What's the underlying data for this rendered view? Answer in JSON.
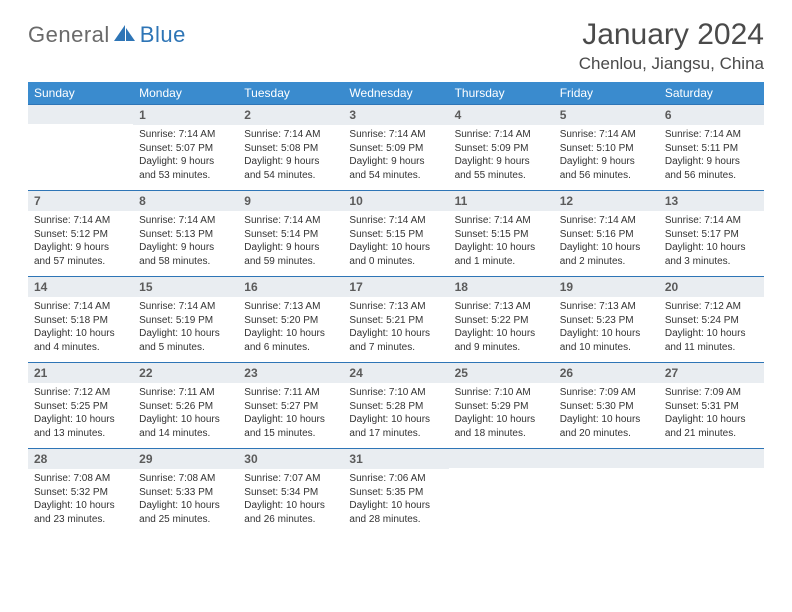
{
  "brand": {
    "part1": "General",
    "part2": "Blue"
  },
  "title": "January 2024",
  "location": "Chenlou, Jiangsu, China",
  "theme": {
    "header_bg": "#3a8bce",
    "header_text": "#ffffff",
    "daynum_bg": "#e9edf1",
    "daynum_text": "#5b5b5b",
    "rule_color": "#2e75b6",
    "body_text": "#333333",
    "logo_gray": "#6a6a6a",
    "logo_blue": "#2e75b6"
  },
  "weekdays": [
    "Sunday",
    "Monday",
    "Tuesday",
    "Wednesday",
    "Thursday",
    "Friday",
    "Saturday"
  ],
  "first_weekday_index": 1,
  "days": [
    {
      "n": 1,
      "sunrise": "7:14 AM",
      "sunset": "5:07 PM",
      "daylight": "9 hours and 53 minutes."
    },
    {
      "n": 2,
      "sunrise": "7:14 AM",
      "sunset": "5:08 PM",
      "daylight": "9 hours and 54 minutes."
    },
    {
      "n": 3,
      "sunrise": "7:14 AM",
      "sunset": "5:09 PM",
      "daylight": "9 hours and 54 minutes."
    },
    {
      "n": 4,
      "sunrise": "7:14 AM",
      "sunset": "5:09 PM",
      "daylight": "9 hours and 55 minutes."
    },
    {
      "n": 5,
      "sunrise": "7:14 AM",
      "sunset": "5:10 PM",
      "daylight": "9 hours and 56 minutes."
    },
    {
      "n": 6,
      "sunrise": "7:14 AM",
      "sunset": "5:11 PM",
      "daylight": "9 hours and 56 minutes."
    },
    {
      "n": 7,
      "sunrise": "7:14 AM",
      "sunset": "5:12 PM",
      "daylight": "9 hours and 57 minutes."
    },
    {
      "n": 8,
      "sunrise": "7:14 AM",
      "sunset": "5:13 PM",
      "daylight": "9 hours and 58 minutes."
    },
    {
      "n": 9,
      "sunrise": "7:14 AM",
      "sunset": "5:14 PM",
      "daylight": "9 hours and 59 minutes."
    },
    {
      "n": 10,
      "sunrise": "7:14 AM",
      "sunset": "5:15 PM",
      "daylight": "10 hours and 0 minutes."
    },
    {
      "n": 11,
      "sunrise": "7:14 AM",
      "sunset": "5:15 PM",
      "daylight": "10 hours and 1 minute."
    },
    {
      "n": 12,
      "sunrise": "7:14 AM",
      "sunset": "5:16 PM",
      "daylight": "10 hours and 2 minutes."
    },
    {
      "n": 13,
      "sunrise": "7:14 AM",
      "sunset": "5:17 PM",
      "daylight": "10 hours and 3 minutes."
    },
    {
      "n": 14,
      "sunrise": "7:14 AM",
      "sunset": "5:18 PM",
      "daylight": "10 hours and 4 minutes."
    },
    {
      "n": 15,
      "sunrise": "7:14 AM",
      "sunset": "5:19 PM",
      "daylight": "10 hours and 5 minutes."
    },
    {
      "n": 16,
      "sunrise": "7:13 AM",
      "sunset": "5:20 PM",
      "daylight": "10 hours and 6 minutes."
    },
    {
      "n": 17,
      "sunrise": "7:13 AM",
      "sunset": "5:21 PM",
      "daylight": "10 hours and 7 minutes."
    },
    {
      "n": 18,
      "sunrise": "7:13 AM",
      "sunset": "5:22 PM",
      "daylight": "10 hours and 9 minutes."
    },
    {
      "n": 19,
      "sunrise": "7:13 AM",
      "sunset": "5:23 PM",
      "daylight": "10 hours and 10 minutes."
    },
    {
      "n": 20,
      "sunrise": "7:12 AM",
      "sunset": "5:24 PM",
      "daylight": "10 hours and 11 minutes."
    },
    {
      "n": 21,
      "sunrise": "7:12 AM",
      "sunset": "5:25 PM",
      "daylight": "10 hours and 13 minutes."
    },
    {
      "n": 22,
      "sunrise": "7:11 AM",
      "sunset": "5:26 PM",
      "daylight": "10 hours and 14 minutes."
    },
    {
      "n": 23,
      "sunrise": "7:11 AM",
      "sunset": "5:27 PM",
      "daylight": "10 hours and 15 minutes."
    },
    {
      "n": 24,
      "sunrise": "7:10 AM",
      "sunset": "5:28 PM",
      "daylight": "10 hours and 17 minutes."
    },
    {
      "n": 25,
      "sunrise": "7:10 AM",
      "sunset": "5:29 PM",
      "daylight": "10 hours and 18 minutes."
    },
    {
      "n": 26,
      "sunrise": "7:09 AM",
      "sunset": "5:30 PM",
      "daylight": "10 hours and 20 minutes."
    },
    {
      "n": 27,
      "sunrise": "7:09 AM",
      "sunset": "5:31 PM",
      "daylight": "10 hours and 21 minutes."
    },
    {
      "n": 28,
      "sunrise": "7:08 AM",
      "sunset": "5:32 PM",
      "daylight": "10 hours and 23 minutes."
    },
    {
      "n": 29,
      "sunrise": "7:08 AM",
      "sunset": "5:33 PM",
      "daylight": "10 hours and 25 minutes."
    },
    {
      "n": 30,
      "sunrise": "7:07 AM",
      "sunset": "5:34 PM",
      "daylight": "10 hours and 26 minutes."
    },
    {
      "n": 31,
      "sunrise": "7:06 AM",
      "sunset": "5:35 PM",
      "daylight": "10 hours and 28 minutes."
    }
  ],
  "labels": {
    "sunrise": "Sunrise:",
    "sunset": "Sunset:",
    "daylight": "Daylight:"
  }
}
